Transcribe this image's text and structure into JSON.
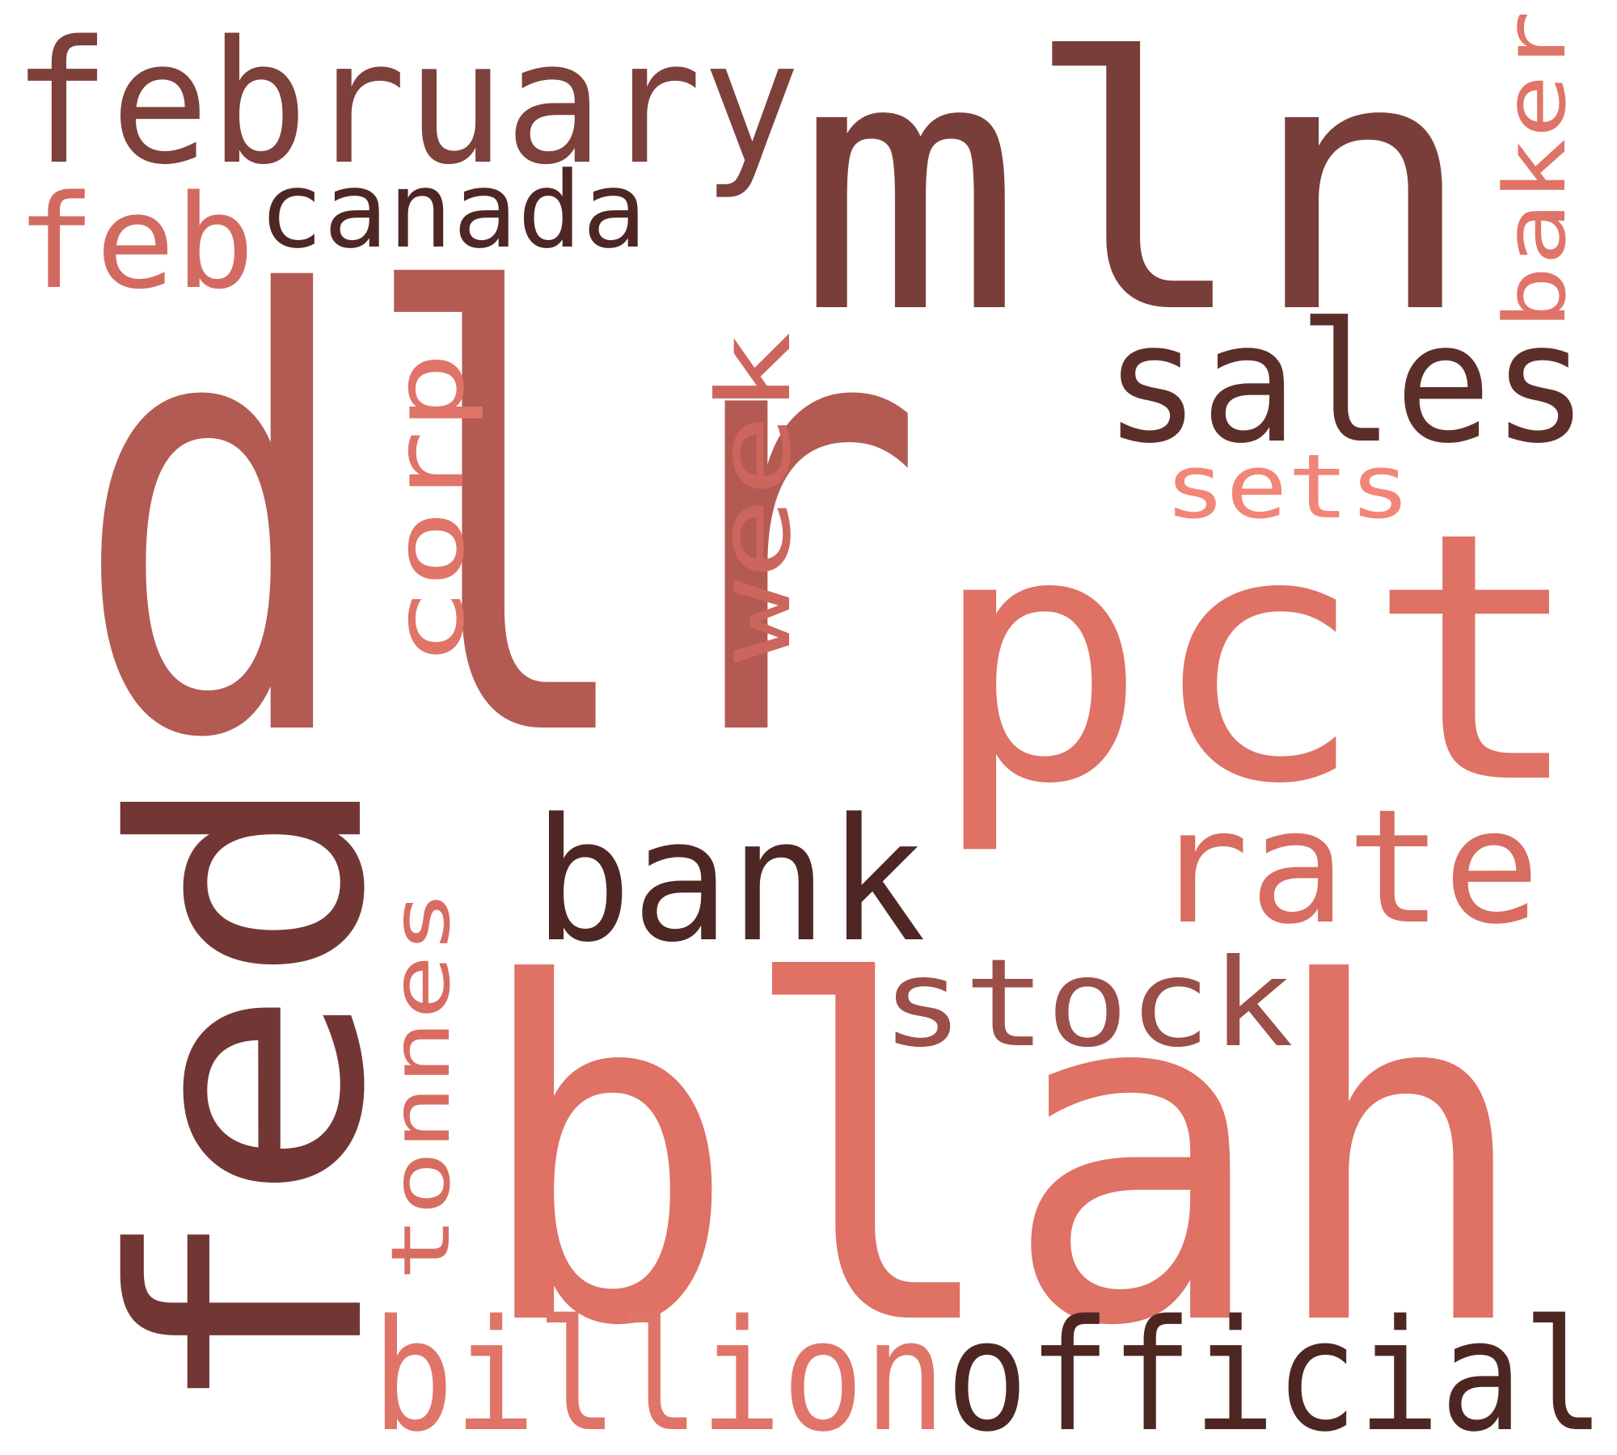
{
  "words": [
    {
      "text": "dlr",
      "color": "#b35b52"
    },
    {
      "text": "blah",
      "color": "#df7165"
    },
    {
      "text": "mln",
      "color": "#7a3e3a"
    },
    {
      "text": "pct",
      "color": "#df7165"
    },
    {
      "text": "fed",
      "color": "#723734"
    },
    {
      "text": "february",
      "color": "#7d403b"
    },
    {
      "text": "sales",
      "color": "#5c2e2a"
    },
    {
      "text": "bank",
      "color": "#4e2724"
    },
    {
      "text": "official",
      "color": "#4d2622"
    },
    {
      "text": "billion",
      "color": "#e07468"
    },
    {
      "text": "rate",
      "color": "#d86c61"
    },
    {
      "text": "stock",
      "color": "#9c4e48"
    },
    {
      "text": "corp",
      "color": "#e07468"
    },
    {
      "text": "week",
      "color": "#cc665d"
    },
    {
      "text": "canada",
      "color": "#4e2724"
    },
    {
      "text": "feb",
      "color": "#d36a61"
    },
    {
      "text": "baker",
      "color": "#e07468"
    },
    {
      "text": "tonnes",
      "color": "#d86c61"
    },
    {
      "text": "sets",
      "color": "#f28577"
    }
  ]
}
